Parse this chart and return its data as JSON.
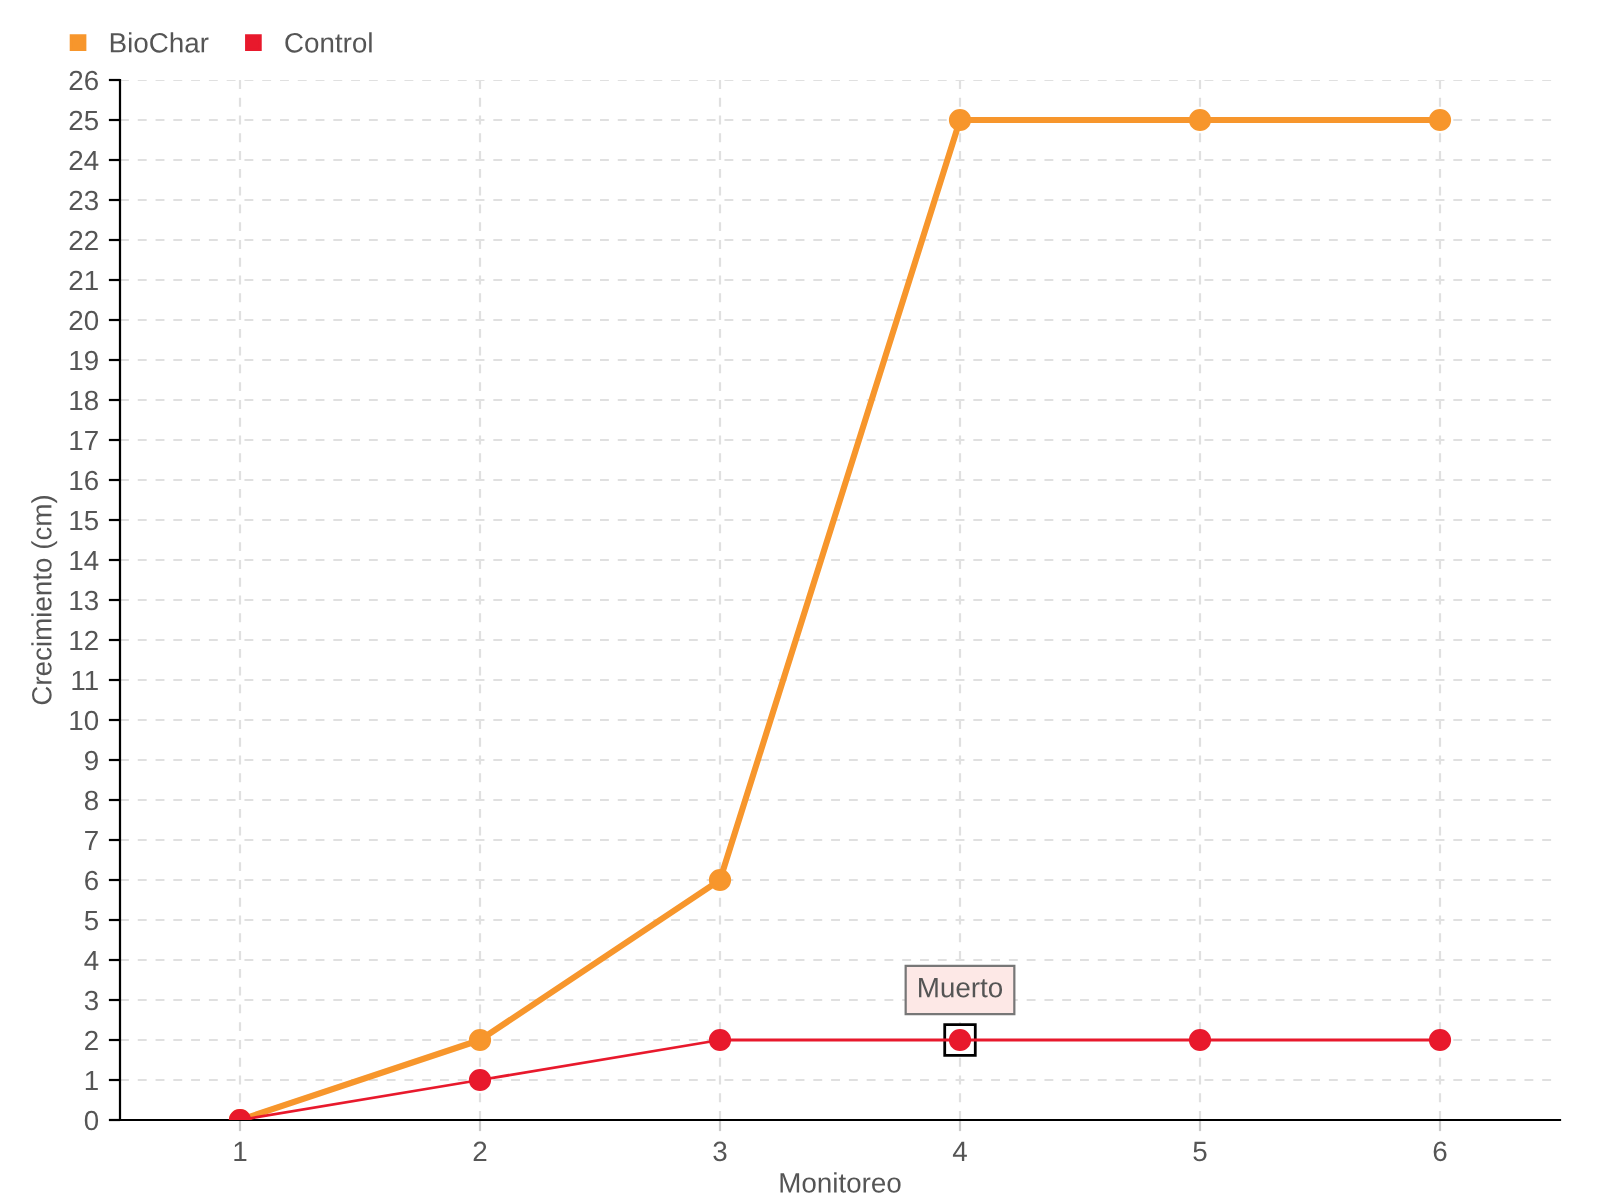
{
  "chart_data": {
    "type": "line",
    "xlabel": "Monitoreo",
    "ylabel": "Crecimiento (cm)",
    "x": [
      1,
      2,
      3,
      4,
      5,
      6
    ],
    "series": [
      {
        "name": "BioChar",
        "color": "#f7962c",
        "values": [
          0,
          2,
          6,
          25,
          25,
          25
        ]
      },
      {
        "name": "Control",
        "color": "#e8192c",
        "values": [
          0,
          1,
          2,
          2,
          2,
          2
        ]
      }
    ],
    "xlim": [
      0.5,
      6.5
    ],
    "xticks": [
      1,
      2,
      3,
      4,
      5,
      6
    ],
    "ylim": [
      0,
      26
    ],
    "yticks": [
      0,
      1,
      2,
      3,
      4,
      5,
      6,
      7,
      8,
      9,
      10,
      11,
      12,
      13,
      14,
      15,
      16,
      17,
      18,
      19,
      20,
      21,
      22,
      23,
      24,
      25,
      26
    ],
    "annotations": [
      {
        "text": "Muerto",
        "x": 4,
        "y": 2
      }
    ],
    "grid": true,
    "legend": "top left",
    "marker": "circle",
    "line_style": "solid"
  }
}
